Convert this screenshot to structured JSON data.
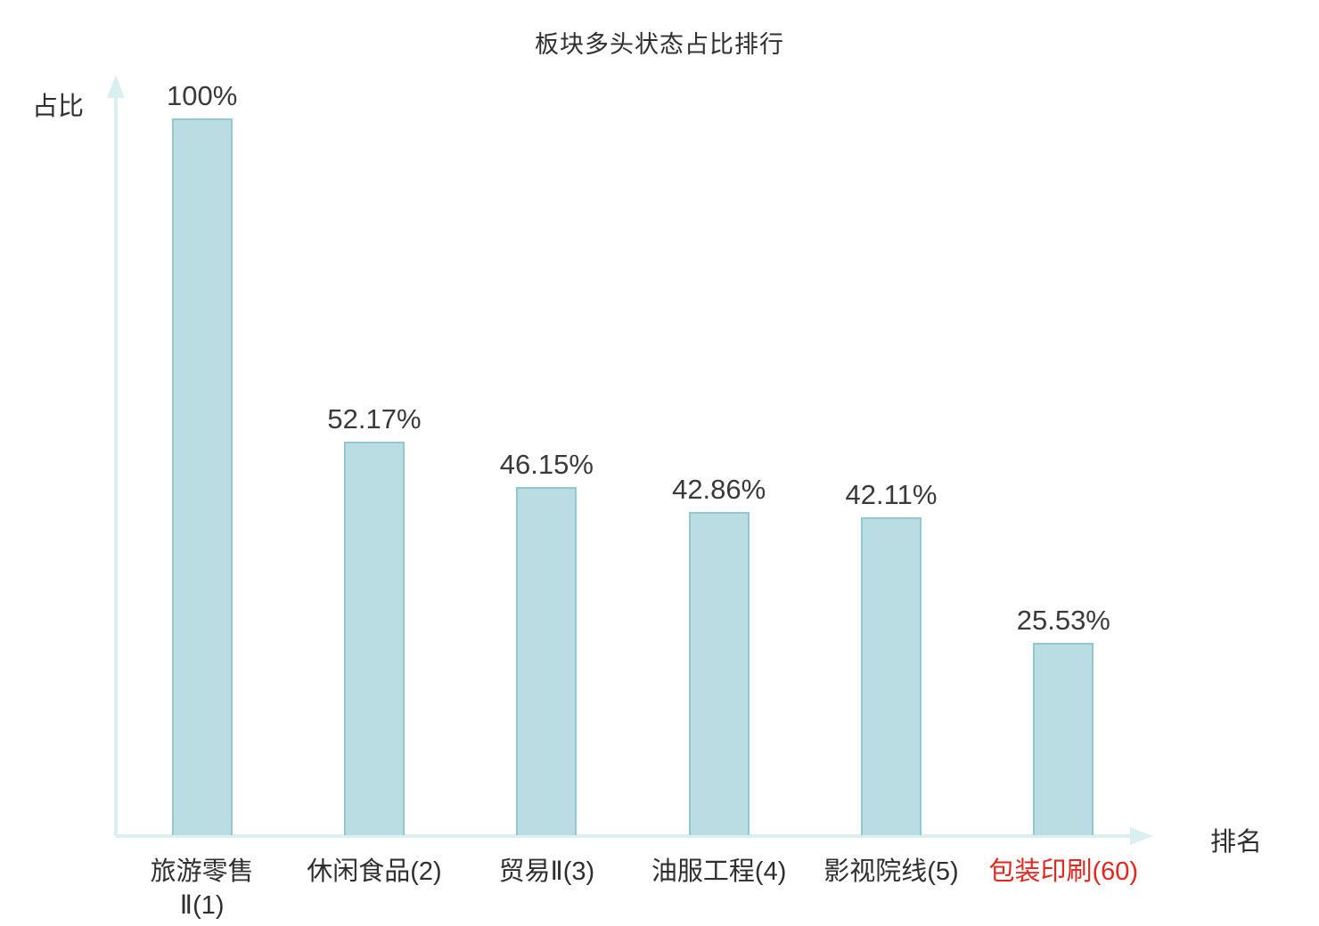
{
  "chart_data": {
    "type": "bar",
    "title": "板块多头状态占比排行",
    "xlabel": "排名",
    "ylabel": "占比",
    "categories": [
      "旅游零售\nⅡ(1)",
      "休闲食品(2)",
      "贸易Ⅱ(3)",
      "油服工程(4)",
      "影视院线(5)",
      "包装印刷(60)"
    ],
    "values": [
      100,
      52.17,
      46.15,
      42.86,
      42.11,
      25.53
    ],
    "value_labels": [
      "100%",
      "52.17%",
      "46.15%",
      "42.86%",
      "42.11%",
      "25.53%"
    ],
    "ylim": [
      0,
      100
    ],
    "grid": false,
    "legend": "none",
    "highlight_index": 5,
    "colors": {
      "bar_fill": "#b9dde3",
      "bar_border": "#93c8d0",
      "axis": "#d9eff0",
      "text": "#2f2f2f",
      "value_text": "#3a3a3a",
      "highlight_text": "#e8251c"
    }
  }
}
